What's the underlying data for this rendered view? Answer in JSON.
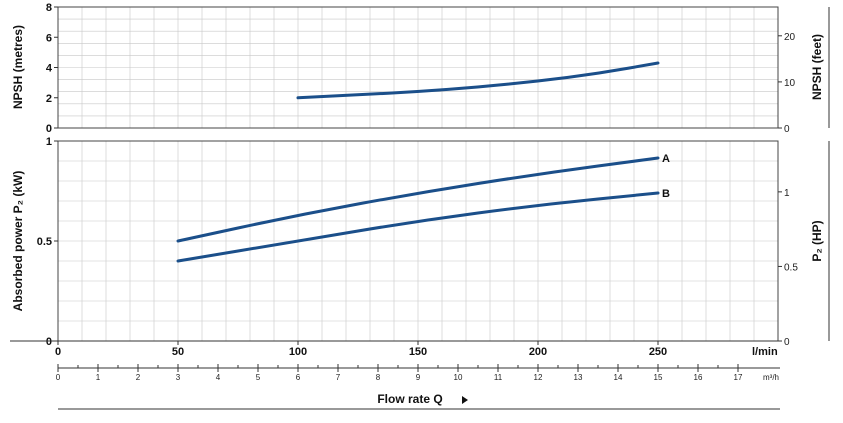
{
  "chart_data": [
    {
      "type": "line",
      "panel": "npsh",
      "ylabel_left": "NPSH (metres)",
      "ylabel_right": "NPSH (feet)",
      "ylim": [
        0,
        8
      ],
      "yticks_left": [
        "0",
        "2",
        "4",
        "6",
        "8"
      ],
      "yticks_right": [
        "0",
        "10",
        "20"
      ],
      "right_tick_values_m": [
        0,
        3.048,
        6.096
      ],
      "grid": true,
      "series": [
        {
          "x": [
            100,
            125,
            150,
            175,
            200,
            225,
            250
          ],
          "y": [
            2.0,
            2.2,
            2.4,
            2.7,
            3.1,
            3.6,
            4.3
          ]
        }
      ]
    },
    {
      "type": "line",
      "panel": "power",
      "ylabel_left": "Absorbed power P₂ (kW)",
      "ylabel_right": "P₂ (HP)",
      "ylim": [
        0,
        1
      ],
      "yticks_left": [
        "0",
        "0.5",
        "1"
      ],
      "yticks_right": [
        "0",
        "0.5",
        "1"
      ],
      "right_tick_values_kw": [
        0,
        0.3728,
        0.7457
      ],
      "grid": true,
      "series": [
        {
          "name": "A",
          "x": [
            50,
            100,
            150,
            200,
            250
          ],
          "y": [
            0.5,
            0.63,
            0.74,
            0.835,
            0.915
          ]
        },
        {
          "name": "B",
          "x": [
            50,
            100,
            150,
            200,
            250
          ],
          "y": [
            0.4,
            0.5,
            0.6,
            0.68,
            0.74
          ]
        }
      ]
    }
  ],
  "x_axis": {
    "xlim": [
      0,
      300
    ],
    "lmin_ticks": [
      "0",
      "50",
      "100",
      "150",
      "200",
      "250"
    ],
    "lmin_unit": "l/min",
    "m3h_ticks": [
      "0",
      "1",
      "2",
      "3",
      "4",
      "5",
      "6",
      "7",
      "8",
      "9",
      "10",
      "11",
      "12",
      "13",
      "14",
      "15",
      "16",
      "17"
    ],
    "m3h_unit": "m³/h",
    "xlabel": "Flow rate Q"
  }
}
